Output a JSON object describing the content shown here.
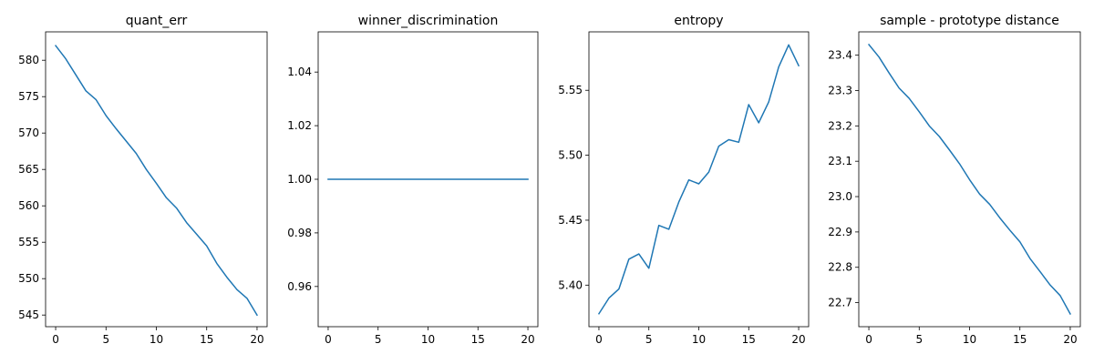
{
  "chart_data": [
    {
      "type": "line",
      "title": "quant_err",
      "xlabel": "",
      "ylabel": "",
      "x": [
        0,
        1,
        2,
        3,
        4,
        5,
        6,
        7,
        8,
        9,
        10,
        11,
        12,
        13,
        14,
        15,
        16,
        17,
        18,
        19,
        20
      ],
      "values": [
        582.0,
        580.2,
        578.0,
        575.8,
        574.6,
        572.4,
        570.6,
        568.9,
        567.2,
        565.0,
        563.1,
        561.1,
        559.7,
        557.7,
        556.1,
        554.5,
        552.1,
        550.2,
        548.5,
        547.3,
        545.0
      ],
      "xlim": [
        -1,
        21
      ],
      "ylim": [
        543.4,
        583.9
      ],
      "xticks": [
        0,
        5,
        10,
        15,
        20
      ],
      "xtick_labels": [
        "0",
        "5",
        "10",
        "15",
        "20"
      ],
      "yticks": [
        545,
        550,
        555,
        560,
        565,
        570,
        575,
        580
      ],
      "ytick_labels": [
        "545",
        "550",
        "555",
        "560",
        "565",
        "570",
        "575",
        "580"
      ],
      "grid": false,
      "color": "#1f77b4"
    },
    {
      "type": "line",
      "title": "winner_discrimination",
      "xlabel": "",
      "ylabel": "",
      "x": [
        0,
        1,
        2,
        3,
        4,
        5,
        6,
        7,
        8,
        9,
        10,
        11,
        12,
        13,
        14,
        15,
        16,
        17,
        18,
        19,
        20
      ],
      "values": [
        1,
        1,
        1,
        1,
        1,
        1,
        1,
        1,
        1,
        1,
        1,
        1,
        1,
        1,
        1,
        1,
        1,
        1,
        1,
        1,
        1
      ],
      "xlim": [
        -1,
        21
      ],
      "ylim": [
        0.945,
        1.055
      ],
      "xticks": [
        0,
        5,
        10,
        15,
        20
      ],
      "xtick_labels": [
        "0",
        "5",
        "10",
        "15",
        "20"
      ],
      "yticks": [
        0.96,
        0.98,
        1.0,
        1.02,
        1.04
      ],
      "ytick_labels": [
        "0.96",
        "0.98",
        "1.00",
        "1.02",
        "1.04"
      ],
      "grid": false,
      "color": "#1f77b4"
    },
    {
      "type": "line",
      "title": "entropy",
      "xlabel": "",
      "ylabel": "",
      "x": [
        0,
        1,
        2,
        3,
        4,
        5,
        6,
        7,
        8,
        9,
        10,
        11,
        12,
        13,
        14,
        15,
        16,
        17,
        18,
        19,
        20
      ],
      "values": [
        5.378,
        5.39,
        5.397,
        5.42,
        5.424,
        5.413,
        5.446,
        5.443,
        5.464,
        5.481,
        5.478,
        5.487,
        5.507,
        5.512,
        5.51,
        5.539,
        5.525,
        5.541,
        5.568,
        5.585,
        5.569
      ],
      "xlim": [
        -1,
        21
      ],
      "ylim": [
        5.368,
        5.595
      ],
      "xticks": [
        0,
        5,
        10,
        15,
        20
      ],
      "xtick_labels": [
        "0",
        "5",
        "10",
        "15",
        "20"
      ],
      "yticks": [
        5.4,
        5.45,
        5.5,
        5.55
      ],
      "ytick_labels": [
        "5.40",
        "5.45",
        "5.50",
        "5.55"
      ],
      "grid": false,
      "color": "#1f77b4"
    },
    {
      "type": "line",
      "title": "sample - prototype distance",
      "xlabel": "",
      "ylabel": "",
      "x": [
        0,
        1,
        2,
        3,
        4,
        5,
        6,
        7,
        8,
        9,
        10,
        11,
        12,
        13,
        14,
        15,
        16,
        17,
        18,
        19,
        20
      ],
      "values": [
        23.43,
        23.395,
        23.35,
        23.307,
        23.278,
        23.24,
        23.2,
        23.17,
        23.132,
        23.093,
        23.048,
        23.007,
        22.978,
        22.94,
        22.905,
        22.872,
        22.825,
        22.788,
        22.75,
        22.72,
        22.668
      ],
      "xlim": [
        -1,
        21
      ],
      "ylim": [
        22.632,
        23.466
      ],
      "xticks": [
        0,
        5,
        10,
        15,
        20
      ],
      "xtick_labels": [
        "0",
        "5",
        "10",
        "15",
        "20"
      ],
      "yticks": [
        22.7,
        22.8,
        22.9,
        23.0,
        23.1,
        23.2,
        23.3,
        23.4
      ],
      "ytick_labels": [
        "22.7",
        "22.8",
        "22.9",
        "23.0",
        "23.1",
        "23.2",
        "23.3",
        "23.4"
      ],
      "grid": false,
      "color": "#1f77b4"
    }
  ]
}
